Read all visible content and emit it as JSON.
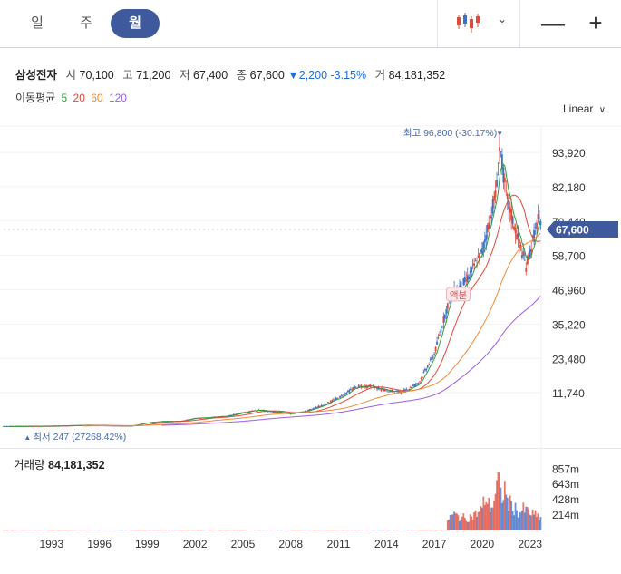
{
  "tabs": [
    {
      "label": "일",
      "active": false
    },
    {
      "label": "주",
      "active": false
    },
    {
      "label": "월",
      "active": true
    }
  ],
  "toolbar": {
    "chart_type_icon": "candlestick-icon",
    "dropdown_icon": "chevron-down-icon",
    "minus": "—",
    "plus": "+"
  },
  "stock": {
    "name": "삼성전자",
    "open_label": "시",
    "open": "70,100",
    "high_label": "고",
    "high": "71,200",
    "low_label": "저",
    "low": "67,400",
    "close_label": "종",
    "close": "67,600",
    "change": "▼2,200 -3.15%",
    "volume_label": "거",
    "volume": "84,181,352"
  },
  "moving_average": {
    "label": "이동평균",
    "periods": [
      {
        "value": "5",
        "color": "#2e9e3a"
      },
      {
        "value": "20",
        "color": "#e0493b"
      },
      {
        "value": "60",
        "color": "#f08a36"
      },
      {
        "value": "120",
        "color": "#9b5de5"
      }
    ]
  },
  "scale_label": "Linear",
  "scale_caret": "∨",
  "chart_data": {
    "type": "candlestick",
    "y_ticks": [
      "93,920",
      "82,180",
      "70,440",
      "58,700",
      "46,960",
      "35,220",
      "23,480",
      "11,740"
    ],
    "y_tick_values": [
      93920,
      82180,
      70440,
      58700,
      46960,
      35220,
      23480,
      11740
    ],
    "current_price": "67,600",
    "max_annotation": "최고 96,800 (-30.17%)",
    "max_marker": "▼",
    "min_annotation": "최저 247 (27268.42%)",
    "min_marker": "▲",
    "event_label": "액분",
    "x_ticks": [
      "1993",
      "1996",
      "1999",
      "2002",
      "2005",
      "2008",
      "2011",
      "2014",
      "2017",
      "2020",
      "2023"
    ],
    "price_range": [
      0,
      100000
    ],
    "price_points": [
      [
        1990,
        247
      ],
      [
        1993,
        350
      ],
      [
        1995,
        650
      ],
      [
        1997,
        450
      ],
      [
        1998,
        400
      ],
      [
        1999,
        1500
      ],
      [
        2000,
        2000
      ],
      [
        2001,
        2000
      ],
      [
        2002,
        3000
      ],
      [
        2004,
        3700
      ],
      [
        2005,
        5000
      ],
      [
        2006,
        5800
      ],
      [
        2007,
        5200
      ],
      [
        2008,
        4500
      ],
      [
        2009,
        5500
      ],
      [
        2010,
        7500
      ],
      [
        2011,
        10000
      ],
      [
        2012,
        13500
      ],
      [
        2013,
        14000
      ],
      [
        2014,
        12500
      ],
      [
        2015,
        12000
      ],
      [
        2016,
        15000
      ],
      [
        2017,
        25000
      ],
      [
        2018,
        45000
      ],
      [
        2019,
        50000
      ],
      [
        2020,
        60000
      ],
      [
        2020.9,
        81000
      ],
      [
        2021.1,
        96800
      ],
      [
        2021.5,
        79000
      ],
      [
        2022,
        69000
      ],
      [
        2022.75,
        55000
      ],
      [
        2023.1,
        62000
      ],
      [
        2023.5,
        71000
      ],
      [
        2023.7,
        67600
      ]
    ],
    "volume_label": "거래량",
    "volume_value": "84,181,352",
    "volume_ticks": [
      "857m",
      "643m",
      "428m",
      "214m"
    ],
    "volume_tick_values": [
      857,
      643,
      428,
      214
    ],
    "volume_unit": "m",
    "volume_range": [
      0,
      950
    ],
    "volume_points": [
      [
        2017.8,
        180
      ],
      [
        2018.2,
        260
      ],
      [
        2018.6,
        220
      ],
      [
        2019,
        200
      ],
      [
        2019.4,
        240
      ],
      [
        2019.8,
        300
      ],
      [
        2020,
        350
      ],
      [
        2020.2,
        560
      ],
      [
        2020.4,
        420
      ],
      [
        2020.6,
        380
      ],
      [
        2020.9,
        650
      ],
      [
        2021.0,
        860
      ],
      [
        2021.2,
        520
      ],
      [
        2021.4,
        700
      ],
      [
        2021.6,
        470
      ],
      [
        2021.8,
        420
      ],
      [
        2022,
        380
      ],
      [
        2022.3,
        300
      ],
      [
        2022.6,
        340
      ],
      [
        2022.9,
        310
      ],
      [
        2023.2,
        260
      ],
      [
        2023.5,
        230
      ],
      [
        2023.7,
        200
      ]
    ],
    "colors": {
      "up": "#e0493b",
      "down": "#3f6fc6",
      "ma5": "#2e9e3a",
      "ma20": "#e0493b",
      "ma60": "#f08a36",
      "ma120": "#9b5de5",
      "badge": "#3f5a9c"
    }
  }
}
